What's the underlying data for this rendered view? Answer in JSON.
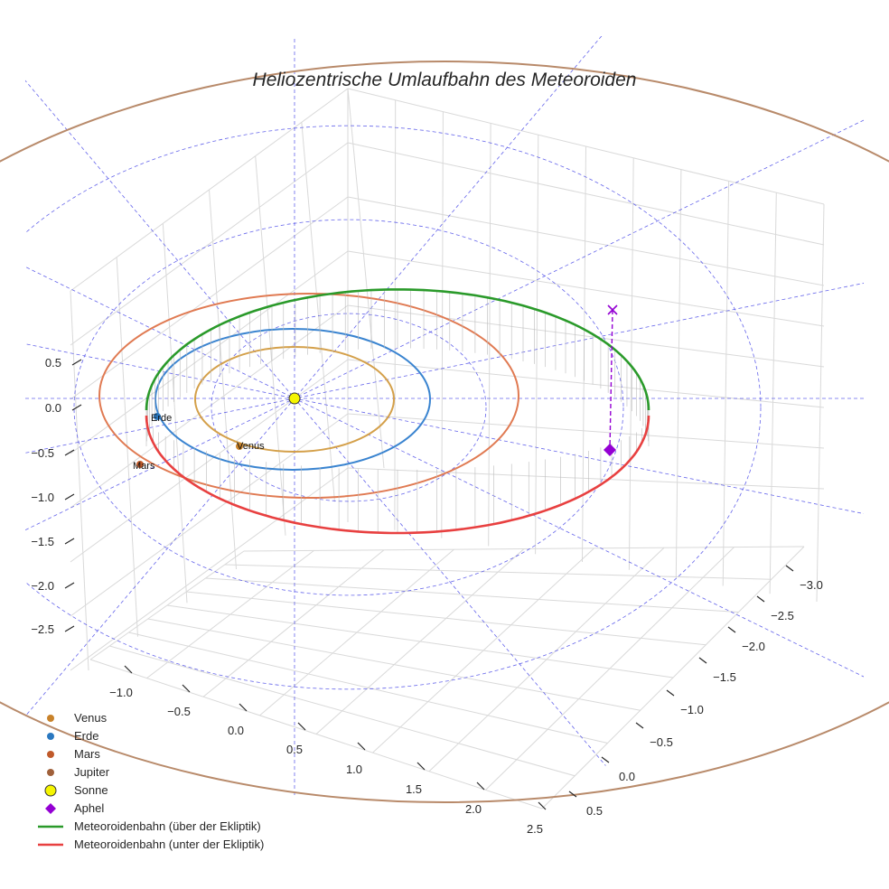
{
  "chart_data": {
    "type": "line",
    "title": "Heliozentrische Umlaufbahn des Meteoroiden",
    "xlabel": "",
    "ylabel": "",
    "zlabel": "",
    "x_ticks": [
      "−1.0",
      "−0.5",
      "0.0",
      "0.5",
      "1.0",
      "1.5",
      "2.0",
      "2.5"
    ],
    "y_ticks": [
      "−3.0",
      "−2.5",
      "−2.0",
      "−1.5",
      "−1.0",
      "−0.5",
      "0.0",
      "0.5"
    ],
    "z_ticks": [
      "0.5",
      "0.0",
      "−0.5",
      "−1.0",
      "−1.5",
      "−2.0",
      "−2.5"
    ],
    "grid": true,
    "legend_position": "bottom-left",
    "planets": [
      {
        "name": "Venus",
        "a": 0.72,
        "label": "Venus",
        "color": "#d4a04a",
        "marker": "#c8822a"
      },
      {
        "name": "Erde",
        "a": 1.0,
        "label": "Erde",
        "color": "#3a84d0",
        "marker": "#2a78c0"
      },
      {
        "name": "Mars",
        "a": 1.52,
        "label": "Mars",
        "color": "#e07a52",
        "marker": "#c05a2a"
      },
      {
        "name": "Jupiter",
        "a": 5.2,
        "label": "",
        "color": "#b88a6a",
        "marker": "#a0603a"
      }
    ],
    "sun": {
      "name": "Sonne",
      "color": "#f5f500"
    },
    "aphel": {
      "name": "Aphel",
      "color": "#9400d3"
    },
    "meteoroid": {
      "a": 1.755,
      "e": 0.5,
      "inclination_deg": 8,
      "series": [
        {
          "name": "Meteoroidenbahn (über der Ekliptik)",
          "color": "#2a9a2a"
        },
        {
          "name": "Meteoroidenbahn (unter der Ekliptik)",
          "color": "#e84040"
        }
      ]
    },
    "reference_circles_au": [
      1,
      2,
      3
    ],
    "reference_spokes": 8
  },
  "legend": [
    {
      "label": "Venus",
      "kind": "dot",
      "color": "#c8822a"
    },
    {
      "label": "Erde",
      "kind": "dot",
      "color": "#2a78c0"
    },
    {
      "label": "Mars",
      "kind": "dot",
      "color": "#c05a2a"
    },
    {
      "label": "Jupiter",
      "kind": "dot",
      "color": "#a0603a"
    },
    {
      "label": "Sonne",
      "kind": "sun",
      "color": "#f5f500"
    },
    {
      "label": "Aphel",
      "kind": "diamond",
      "color": "#9400d3"
    },
    {
      "label": "Meteoroidenbahn (über der Ekliptik)",
      "kind": "line",
      "color": "#2a9a2a"
    },
    {
      "label": "Meteoroidenbahn (unter der Ekliptik)",
      "kind": "line",
      "color": "#e84040"
    }
  ]
}
